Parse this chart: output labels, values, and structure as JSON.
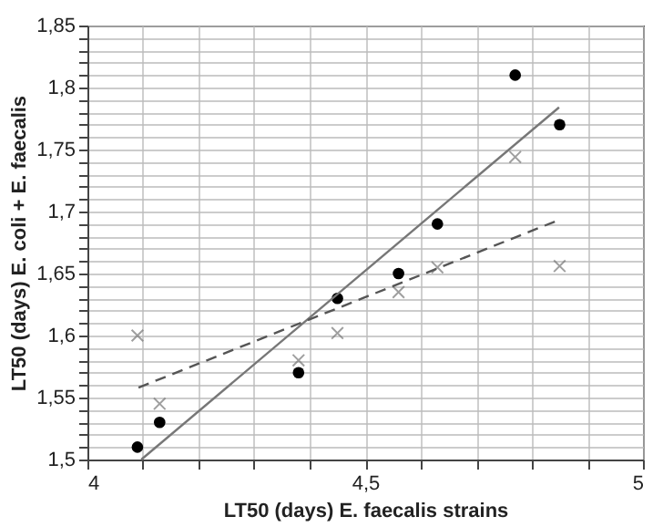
{
  "chart_data": {
    "type": "scatter",
    "xlabel": "LT50 (days)  E. faecalis strains",
    "ylabel": "LT50 (days)   E. coli + E. faecalis",
    "xlim": [
      4,
      5
    ],
    "ylim": [
      1.5,
      1.85
    ],
    "xticks": [
      {
        "value": 4,
        "label": "4"
      },
      {
        "value": 4.1,
        "label": null
      },
      {
        "value": 4.2,
        "label": null
      },
      {
        "value": 4.3,
        "label": null
      },
      {
        "value": 4.4,
        "label": null
      },
      {
        "value": 4.5,
        "label": "4,5"
      },
      {
        "value": 4.6,
        "label": null
      },
      {
        "value": 4.7,
        "label": null
      },
      {
        "value": 4.8,
        "label": null
      },
      {
        "value": 4.9,
        "label": null
      },
      {
        "value": 5,
        "label": "5"
      }
    ],
    "yticks": [
      {
        "value": 1.5,
        "label": "1,5"
      },
      {
        "value": 1.51,
        "label": null
      },
      {
        "value": 1.52,
        "label": null
      },
      {
        "value": 1.53,
        "label": null
      },
      {
        "value": 1.54,
        "label": null
      },
      {
        "value": 1.55,
        "label": "1,55"
      },
      {
        "value": 1.56,
        "label": null
      },
      {
        "value": 1.57,
        "label": null
      },
      {
        "value": 1.58,
        "label": null
      },
      {
        "value": 1.59,
        "label": null
      },
      {
        "value": 1.6,
        "label": "1,6"
      },
      {
        "value": 1.61,
        "label": null
      },
      {
        "value": 1.62,
        "label": null
      },
      {
        "value": 1.63,
        "label": null
      },
      {
        "value": 1.64,
        "label": null
      },
      {
        "value": 1.65,
        "label": "1,65"
      },
      {
        "value": 1.66,
        "label": null
      },
      {
        "value": 1.67,
        "label": null
      },
      {
        "value": 1.68,
        "label": null
      },
      {
        "value": 1.69,
        "label": null
      },
      {
        "value": 1.7,
        "label": "1,7"
      },
      {
        "value": 1.71,
        "label": null
      },
      {
        "value": 1.72,
        "label": null
      },
      {
        "value": 1.73,
        "label": null
      },
      {
        "value": 1.74,
        "label": null
      },
      {
        "value": 1.75,
        "label": "1,75"
      },
      {
        "value": 1.76,
        "label": null
      },
      {
        "value": 1.77,
        "label": null
      },
      {
        "value": 1.78,
        "label": null
      },
      {
        "value": 1.79,
        "label": null
      },
      {
        "value": 1.8,
        "label": "1,8"
      },
      {
        "value": 1.81,
        "label": null
      },
      {
        "value": 1.82,
        "label": null
      },
      {
        "value": 1.83,
        "label": null
      },
      {
        "value": 1.84,
        "label": null
      },
      {
        "value": 1.85,
        "label": "1,85"
      }
    ],
    "grid": true,
    "series": [
      {
        "marker": "circle",
        "color": "#000000",
        "x": [
          4.09,
          4.13,
          4.38,
          4.45,
          4.56,
          4.63,
          4.77,
          4.85
        ],
        "values": [
          1.51,
          1.53,
          1.57,
          1.63,
          1.65,
          1.69,
          1.81,
          1.77
        ]
      },
      {
        "marker": "cross",
        "color": "#777777",
        "x": [
          4.09,
          4.13,
          4.38,
          4.45,
          4.56,
          4.63,
          4.77,
          4.85
        ],
        "values": [
          1.6,
          1.545,
          1.58,
          1.602,
          1.635,
          1.655,
          1.744,
          1.656
        ]
      },
      {
        "type": "line",
        "line_style": "solid",
        "color": "#777777",
        "x": [
          4.097,
          4.849
        ],
        "values": [
          1.5,
          1.784
        ]
      },
      {
        "type": "line",
        "line_style": "dashed",
        "color": "#555555",
        "x": [
          4.092,
          4.842
        ],
        "values": [
          1.558,
          1.692
        ]
      }
    ]
  }
}
